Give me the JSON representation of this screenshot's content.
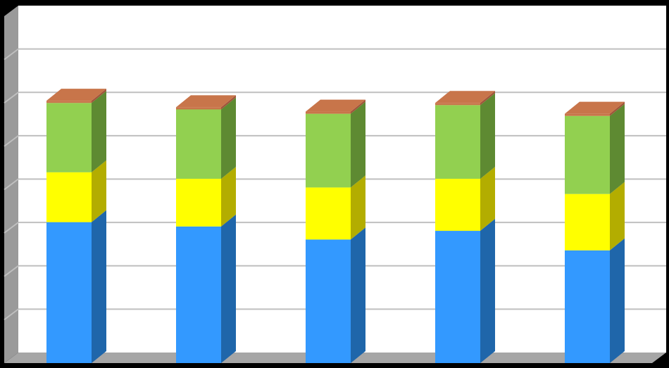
{
  "chart_data": {
    "type": "bar",
    "stacked": true,
    "three_d": true,
    "categories": [
      "",
      "",
      "",
      "",
      ""
    ],
    "ylim": [
      0,
      8
    ],
    "grid": true,
    "legend": "none",
    "series": [
      {
        "color": "#3399FF",
        "side_color": "#1F66AA",
        "values": [
          3.25,
          3.15,
          2.85,
          3.05,
          2.6
        ]
      },
      {
        "color": "#FFFF00",
        "side_color": "#B3AD00",
        "values": [
          1.15,
          1.1,
          1.2,
          1.2,
          1.3
        ]
      },
      {
        "color": "#92D050",
        "side_color": "#5E8A32",
        "values": [
          1.6,
          1.6,
          1.7,
          1.7,
          1.8
        ]
      },
      {
        "color": "#C8754A",
        "side_color": "#A0553A",
        "values": [
          0.05,
          0.05,
          0.05,
          0.05,
          0.05
        ]
      }
    ]
  }
}
